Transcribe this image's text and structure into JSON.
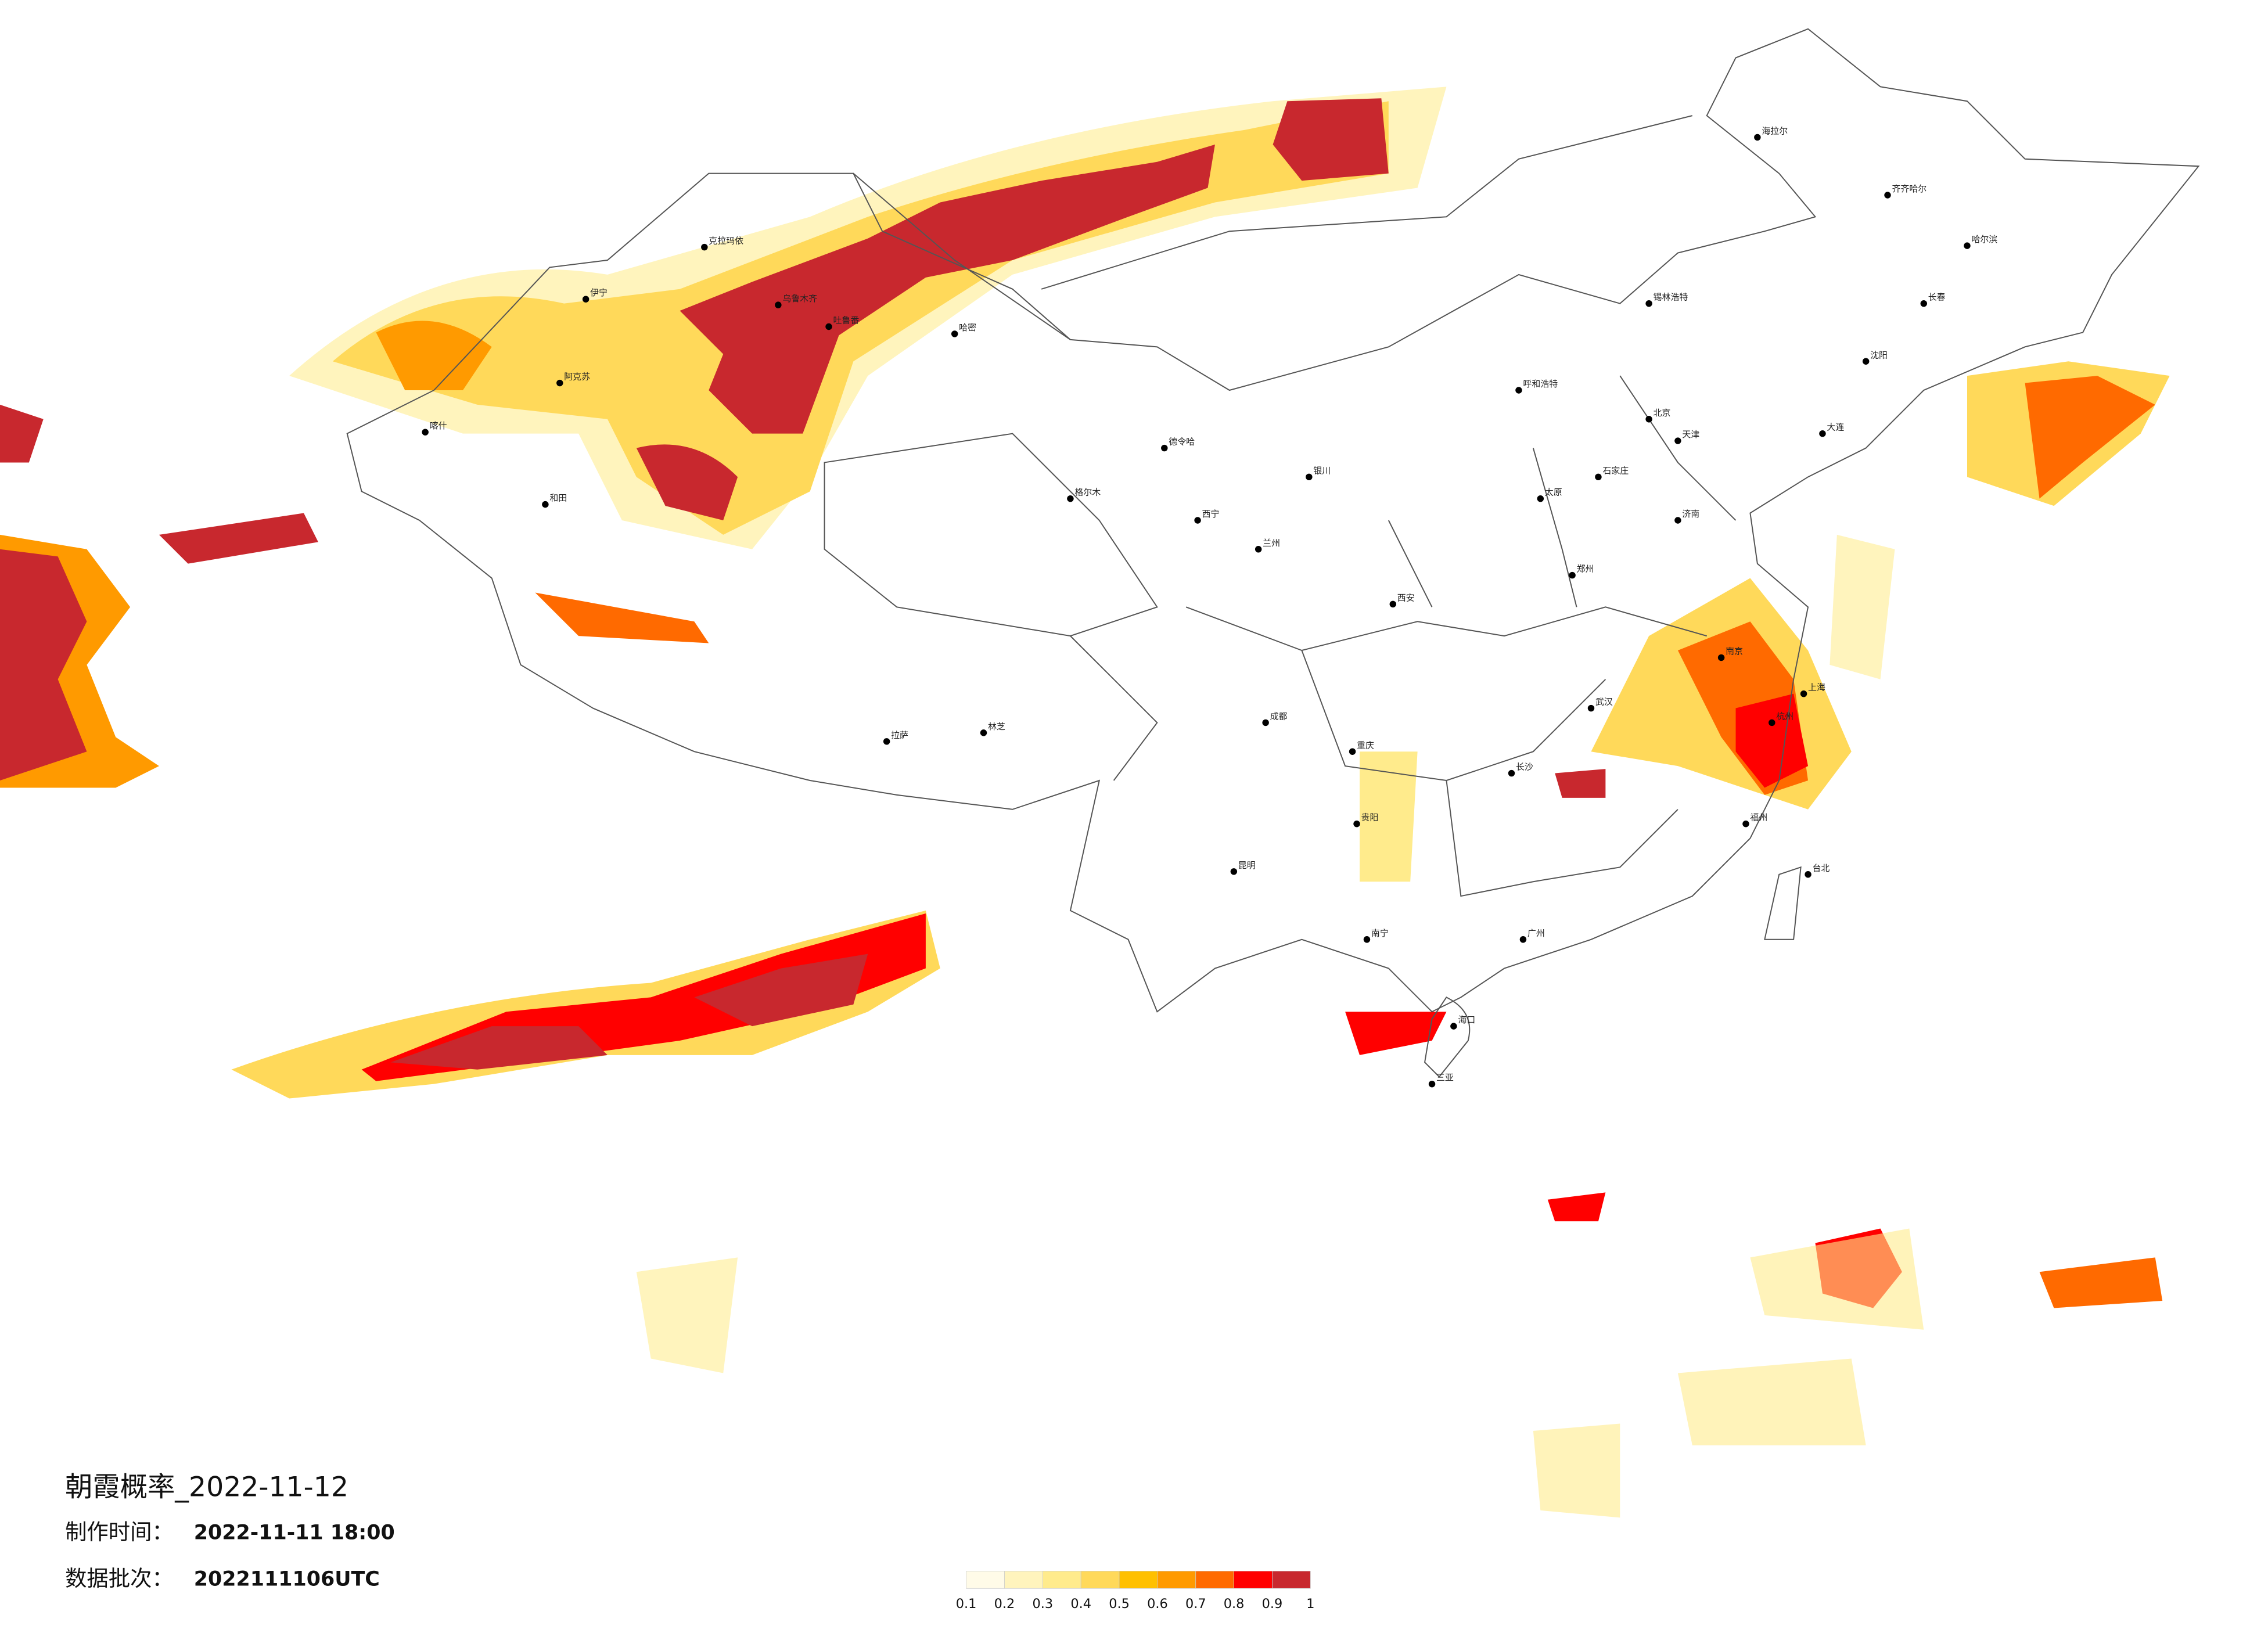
{
  "title": "朝霞概率_2022-11-12",
  "issue": {
    "label": "制作时间：",
    "value": "2022-11-11 18:00"
  },
  "batch": {
    "label": "数据批次：",
    "value": "2022111106UTC"
  },
  "legend": {
    "ticks": [
      0.1,
      0.2,
      0.3,
      0.4,
      0.5,
      0.6,
      0.7,
      0.8,
      0.9,
      1
    ],
    "colors": [
      "#fffbe8",
      "#fff4bd",
      "#ffeb8c",
      "#ffd95a",
      "#ffc000",
      "#ff9a00",
      "#ff6a00",
      "#ff0000",
      "#c8282e"
    ]
  },
  "cities": [
    "乌鲁木齐",
    "吐鲁番",
    "哈密",
    "克拉玛依",
    "伊宁",
    "阿克苏",
    "和田",
    "喀什",
    "拉萨",
    "林芝",
    "西宁",
    "兰州",
    "银川",
    "呼和浩特",
    "北京",
    "天津",
    "石家庄",
    "太原",
    "济南",
    "郑州",
    "西安",
    "成都",
    "重庆",
    "贵阳",
    "昆明",
    "南宁",
    "广州",
    "长沙",
    "武汉",
    "南京",
    "上海",
    "杭州",
    "福州",
    "台北",
    "哈尔滨",
    "长春",
    "沈阳",
    "大连",
    "海口",
    "三亚",
    "齐齐哈尔",
    "海拉尔",
    "锡林浩特",
    "格尔木",
    "德令哈"
  ]
}
